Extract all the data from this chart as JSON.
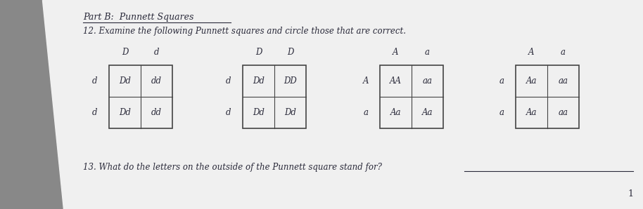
{
  "paper_color": "#eeeeee",
  "shadow_color": "#555555",
  "title": "Part B:  Punnett Squares",
  "q12": "12. Examine the following Punnett squares and circle those that are correct.",
  "q13": "13. What do the letters on the outside of the Punnett square stand for?",
  "page_num": "1",
  "punnett_squares": [
    {
      "col_headers": [
        "D",
        "d"
      ],
      "row_headers": [
        "d",
        "d"
      ],
      "cells": [
        [
          "Dd",
          "dd"
        ],
        [
          "Dd",
          "dd"
        ]
      ]
    },
    {
      "col_headers": [
        "D",
        "D"
      ],
      "row_headers": [
        "d",
        "d"
      ],
      "cells": [
        [
          "Dd",
          "DD"
        ],
        [
          "Dd",
          "Dd"
        ]
      ]
    },
    {
      "col_headers": [
        "A",
        "a"
      ],
      "row_headers": [
        "A",
        "a"
      ],
      "cells": [
        [
          "AA",
          "aa"
        ],
        [
          "Aa",
          "Aa"
        ]
      ]
    },
    {
      "col_headers": [
        "A",
        "a"
      ],
      "row_headers": [
        "a",
        "a"
      ],
      "cells": [
        [
          "Aa",
          "aa"
        ],
        [
          "Aa",
          "aa"
        ]
      ]
    }
  ],
  "text_color": "#2a2a3a",
  "line_color": "#444444",
  "font_size_title": 9,
  "font_size_text": 8.5,
  "font_size_cells": 8.5,
  "font_size_headers": 8.5
}
